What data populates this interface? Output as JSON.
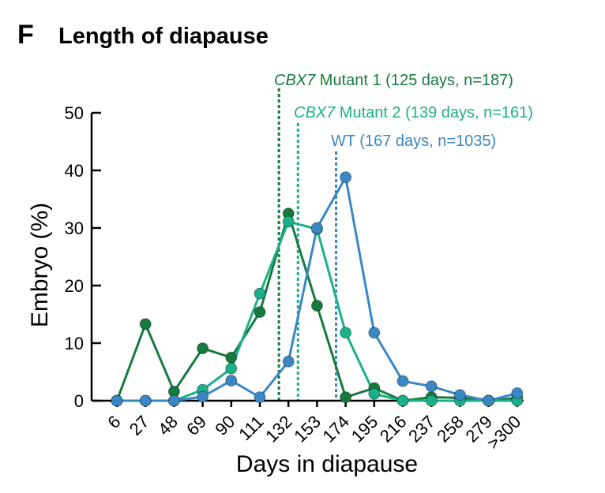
{
  "panel": {
    "letter": "F",
    "title": "Length of diapause"
  },
  "colors": {
    "mutant1": "#167a3e",
    "mutant2": "#1cb08a",
    "wt": "#3a87c4",
    "axis": "#000000"
  },
  "chart_data": {
    "type": "line",
    "title": "Length of diapause",
    "xlabel": "Days in diapause",
    "ylabel": "Embryo (%)",
    "ylim": [
      0,
      50
    ],
    "yticks": [
      "0",
      "10",
      "20",
      "30",
      "40",
      "50"
    ],
    "categories": [
      "6",
      "27",
      "48",
      "69",
      "90",
      "111",
      "132",
      "153",
      "174",
      "195",
      "216",
      "237",
      "258",
      "279",
      ">300"
    ],
    "grid": false,
    "series": [
      {
        "key": "mutant1",
        "name_italic": "CBX7",
        "name_rest": " Mutant 1 (125 days, n=187)",
        "color": "#167a3e",
        "mean_days": 125,
        "values": [
          0,
          13.3,
          1.6,
          9.1,
          7.5,
          15.4,
          32.5,
          16.5,
          0.6,
          2.2,
          0,
          0.6,
          0.5,
          0,
          0.5
        ]
      },
      {
        "key": "mutant2",
        "name_italic": "CBX7",
        "name_rest": " Mutant 2 (139 days, n=161)",
        "color": "#1cb08a",
        "mean_days": 139,
        "values": [
          0,
          0,
          0,
          1.9,
          5.6,
          18.6,
          31.1,
          29.8,
          11.8,
          1.2,
          0,
          0,
          0,
          0,
          0
        ]
      },
      {
        "key": "wt",
        "name_italic": "",
        "name_rest": "WT (167 days, n=1035)",
        "color": "#3a87c4",
        "mean_days": 167,
        "values": [
          0,
          0,
          0,
          0.7,
          3.5,
          0.6,
          6.8,
          30,
          38.8,
          11.8,
          3.4,
          2.5,
          1,
          0,
          1.3
        ]
      }
    ]
  }
}
